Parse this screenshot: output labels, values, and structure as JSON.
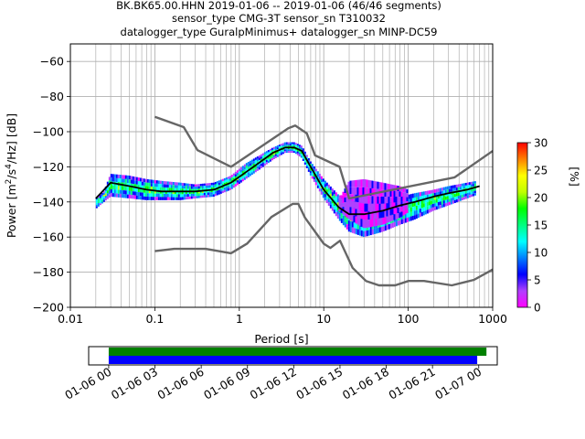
{
  "chart_data": [
    {
      "type": "heatmap",
      "title_lines": [
        "BK.BK65.00.HHN   2019-01-06 -- 2019-01-06  (46/46 segments)",
        "sensor_type CMG-3T sensor_sn T310032",
        "datalogger_type GuralpMinimus+ datalogger_sn MINP-DC59"
      ],
      "xlabel": "Period [s]",
      "ylabel": "Power [m²/s⁴/Hz] [dB]",
      "xscale": "log",
      "xlim": [
        0.01,
        1000
      ],
      "ylim": [
        -200,
        -50
      ],
      "x_ticks": [
        {
          "value": 0.01,
          "label": "0.01"
        },
        {
          "value": 0.1,
          "label": "0.1"
        },
        {
          "value": 1,
          "label": "1"
        },
        {
          "value": 10,
          "label": "10"
        },
        {
          "value": 100,
          "label": "100"
        },
        {
          "value": 1000,
          "label": "1000"
        }
      ],
      "y_ticks": [
        {
          "value": -60,
          "label": "−60"
        },
        {
          "value": -80,
          "label": "−80"
        },
        {
          "value": -100,
          "label": "−100"
        },
        {
          "value": -120,
          "label": "−120"
        },
        {
          "value": -140,
          "label": "−140"
        },
        {
          "value": -160,
          "label": "−160"
        },
        {
          "value": -180,
          "label": "−180"
        },
        {
          "value": -200,
          "label": "−200"
        }
      ],
      "grid": true,
      "colorbar": {
        "label": "[%]",
        "range": [
          0,
          30
        ],
        "ticks": [
          {
            "value": 0,
            "label": "0"
          },
          {
            "value": 5,
            "label": "5"
          },
          {
            "value": 10,
            "label": "10"
          },
          {
            "value": 15,
            "label": "15"
          },
          {
            "value": 20,
            "label": "20"
          },
          {
            "value": 25,
            "label": "25"
          },
          {
            "value": 30,
            "label": "30"
          }
        ],
        "colors": [
          "#ff00ff",
          "#b040ff",
          "#0000ff",
          "#0080ff",
          "#00ffff",
          "#00ff80",
          "#00ff00",
          "#c0ff00",
          "#ffff00",
          "#ff8000",
          "#ff0000"
        ]
      },
      "mode_line": {
        "name": "mode",
        "color": "#000000",
        "x": [
          0.02,
          0.03,
          0.05,
          0.08,
          0.12,
          0.2,
          0.3,
          0.5,
          0.8,
          1.2,
          1.8,
          2.5,
          3.5,
          4.5,
          5.5,
          7,
          10,
          15,
          20,
          30,
          50,
          80,
          120,
          200,
          300,
          500,
          700
        ],
        "y": [
          -138,
          -129,
          -131,
          -133,
          -134,
          -134,
          -134,
          -133,
          -129,
          -123,
          -117,
          -112,
          -109,
          -109,
          -111,
          -120,
          -133,
          -143,
          -147,
          -147,
          -145,
          -142,
          -140,
          -137,
          -135,
          -133,
          -131
        ]
      },
      "noise_models": [
        {
          "name": "high",
          "color": "#666666",
          "x": [
            0.1,
            0.22,
            0.32,
            0.8,
            3.8,
            4.6,
            6.3,
            7.9,
            15.4,
            20,
            354.8,
            1000
          ],
          "y": [
            -91.5,
            -97.4,
            -110.5,
            -120,
            -98,
            -96.5,
            -101,
            -113.5,
            -120,
            -138,
            -126,
            -111
          ]
        },
        {
          "name": "low",
          "color": "#666666",
          "x": [
            0.1,
            0.17,
            0.4,
            0.8,
            1.24,
            2.4,
            4.3,
            5,
            6,
            10,
            12,
            15.6,
            21.9,
            31.6,
            45,
            70,
            101,
            154,
            328,
            600,
            1000
          ],
          "y": [
            -168,
            -166.7,
            -166.7,
            -169.2,
            -163.7,
            -148.6,
            -141.1,
            -141.1,
            -149,
            -163.8,
            -166.2,
            -162.1,
            -177.5,
            -185,
            -187.5,
            -187.5,
            -185,
            -185,
            -187.5,
            -184.4,
            -178.5
          ]
        }
      ],
      "density_bands": [
        {
          "x": [
            0.02,
            0.025,
            0.03,
            0.05,
            0.08,
            0.12,
            0.2,
            0.3,
            0.5,
            0.8,
            1.2,
            1.8,
            2.5,
            3.5,
            4.5,
            5.5,
            7,
            10,
            15,
            20,
            30,
            50,
            80,
            120,
            200,
            300,
            500,
            650
          ],
          "upper": [
            -138,
            -134,
            -124,
            -125,
            -127,
            -128,
            -129,
            -130,
            -129,
            -125,
            -118,
            -113,
            -109,
            -106,
            -106,
            -108,
            -117,
            -127,
            -136,
            -138,
            -140,
            -139,
            -137,
            -135,
            -133,
            -131,
            -129,
            -128
          ],
          "lower": [
            -144,
            -140,
            -137,
            -138,
            -139,
            -139,
            -139,
            -138,
            -137,
            -133,
            -127,
            -121,
            -116,
            -112,
            -112,
            -115,
            -125,
            -138,
            -150,
            -157,
            -160,
            -157,
            -153,
            -150,
            -145,
            -142,
            -138,
            -136
          ]
        },
        {
          "x": [
            15,
            20,
            30,
            50,
            80,
            100
          ],
          "upper": [
            -139,
            -128,
            -127,
            -129,
            -131,
            -133
          ],
          "lower": [
            -145,
            -150,
            -155,
            -153,
            -149,
            -146
          ]
        }
      ]
    },
    {
      "type": "timeline",
      "x_ticks": [
        "01-06 00",
        "01-06 03",
        "01-06 06",
        "01-06 09",
        "01-06 12",
        "01-06 15",
        "01-06 18",
        "01-06 21",
        "01-07 00"
      ],
      "x_range_hours": [
        -1.3,
        25.2
      ],
      "bars": [
        {
          "color": "#008000",
          "start_hour": 0,
          "end_hour": 24.5
        },
        {
          "color": "#0000ff",
          "start_hour": 0,
          "end_hour": 23.9
        }
      ]
    }
  ]
}
